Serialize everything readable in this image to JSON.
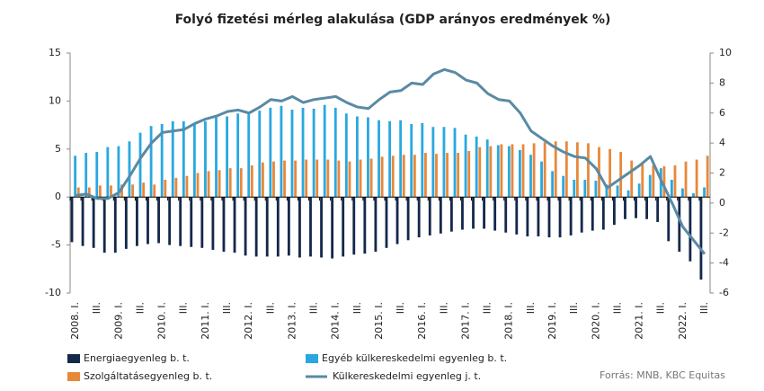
{
  "chart_data": {
    "type": "bar",
    "title": "Folyó fizetési mérleg alakulása (GDP arányos eredmények %)",
    "source": "Forrás: MNB, KBC Equitas",
    "categories": [
      "2008. I.",
      null,
      "III.",
      null,
      "2009. I.",
      null,
      "III.",
      null,
      "2010. I.",
      null,
      "III.",
      null,
      "2011. I.",
      null,
      "III.",
      null,
      "2012. I.",
      null,
      "III.",
      null,
      "2013. I.",
      null,
      "III.",
      null,
      "2014. I.",
      null,
      "III.",
      null,
      "2015. I.",
      null,
      "III.",
      null,
      "2016. I.",
      null,
      "III.",
      null,
      "2017. I.",
      null,
      "III.",
      null,
      "2018. I.",
      null,
      "III.",
      null,
      "2019. I.",
      null,
      "III.",
      null,
      "2020. I.",
      null,
      "III.",
      null,
      "2021. I.",
      null,
      "III.",
      null,
      "2022. I.",
      null,
      "III."
    ],
    "ylim": [
      -10,
      15
    ],
    "yticks": [
      -10,
      -5,
      0,
      5,
      10,
      15
    ],
    "y2lim": [
      -6,
      10
    ],
    "y2ticks": [
      -6,
      -4,
      -2,
      0,
      2,
      4,
      6,
      8,
      10
    ],
    "series": [
      {
        "name": "Energiaegyenleg b. t.",
        "type": "bar",
        "color": "#14284b",
        "values": [
          -4.7,
          -5.1,
          -5.3,
          -5.8,
          -5.8,
          -5.4,
          -5.1,
          -4.9,
          -4.8,
          -5.0,
          -5.1,
          -5.2,
          -5.3,
          -5.5,
          -5.7,
          -5.8,
          -6.1,
          -6.2,
          -6.2,
          -6.2,
          -6.1,
          -6.3,
          -6.2,
          -6.3,
          -6.4,
          -6.2,
          -6.0,
          -5.9,
          -5.7,
          -5.3,
          -4.9,
          -4.5,
          -4.2,
          -4.0,
          -3.8,
          -3.6,
          -3.4,
          -3.3,
          -3.3,
          -3.5,
          -3.7,
          -3.9,
          -4.1,
          -4.1,
          -4.2,
          -4.2,
          -4.0,
          -3.7,
          -3.5,
          -3.4,
          -2.9,
          -2.3,
          -2.2,
          -2.3,
          -2.6,
          -4.6,
          -5.7,
          -6.7,
          -8.6
        ]
      },
      {
        "name": "Egyéb külkereskedelmi egyenleg b. t.",
        "type": "bar",
        "color": "#29a8e0",
        "values": [
          4.3,
          4.6,
          4.7,
          5.2,
          5.3,
          5.8,
          6.7,
          7.4,
          7.6,
          7.9,
          7.9,
          7.7,
          7.9,
          8.3,
          8.4,
          8.7,
          8.8,
          9.0,
          9.3,
          9.5,
          9.1,
          9.3,
          9.2,
          9.6,
          9.3,
          8.7,
          8.4,
          8.3,
          8.0,
          7.9,
          8.0,
          7.6,
          7.7,
          7.3,
          7.3,
          7.2,
          6.5,
          6.3,
          6.0,
          5.4,
          5.3,
          4.9,
          4.4,
          3.7,
          2.7,
          2.2,
          1.8,
          1.8,
          1.7,
          1.3,
          1.2,
          0.7,
          1.4,
          2.3,
          3.0,
          1.8,
          0.9,
          0.4,
          1.0
        ]
      },
      {
        "name": "Szolgáltatásegyenleg b. t.",
        "type": "bar",
        "color": "#e8883a",
        "values": [
          1.0,
          1.0,
          1.2,
          1.2,
          1.3,
          1.3,
          1.5,
          1.3,
          1.8,
          2.0,
          2.2,
          2.5,
          2.7,
          2.8,
          3.0,
          3.0,
          3.3,
          3.6,
          3.7,
          3.8,
          3.8,
          3.9,
          3.9,
          3.9,
          3.8,
          3.7,
          3.9,
          4.0,
          4.2,
          4.3,
          4.4,
          4.4,
          4.6,
          4.5,
          4.6,
          4.6,
          4.8,
          5.2,
          5.3,
          5.5,
          5.5,
          5.5,
          5.6,
          5.7,
          5.8,
          5.8,
          5.7,
          5.6,
          5.2,
          5.0,
          4.7,
          3.8,
          3.5,
          3.3,
          3.2,
          3.3,
          3.7,
          3.9,
          4.3
        ]
      },
      {
        "name": "Külkereskedelmi egyenleg j. t.",
        "type": "line",
        "axis": "y2",
        "color": "#5a8aa3",
        "values": [
          0.5,
          0.6,
          0.3,
          0.3,
          0.7,
          1.8,
          3.0,
          4.0,
          4.7,
          4.8,
          4.9,
          5.3,
          5.6,
          5.8,
          6.1,
          6.2,
          6.0,
          6.4,
          6.9,
          6.8,
          7.1,
          6.7,
          6.9,
          7.0,
          7.1,
          6.7,
          6.4,
          6.3,
          6.9,
          7.4,
          7.5,
          8.0,
          7.9,
          8.6,
          8.9,
          8.7,
          8.2,
          8.0,
          7.3,
          6.9,
          6.8,
          6.0,
          4.8,
          4.3,
          3.8,
          3.4,
          3.1,
          3.0,
          2.3,
          1.0,
          1.5,
          2.0,
          2.5,
          3.1,
          1.5,
          0.0,
          -1.6,
          -2.5,
          -3.4
        ]
      }
    ]
  }
}
